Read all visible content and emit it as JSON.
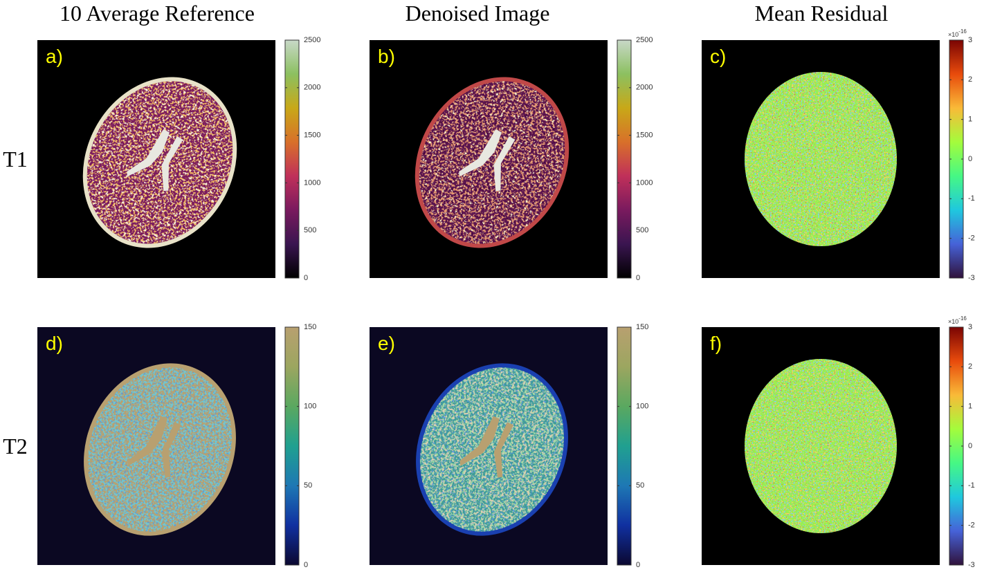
{
  "column_titles": [
    "10 Average Reference",
    "Denoised Image",
    "Mean Residual"
  ],
  "row_labels": [
    "T1",
    "T2"
  ],
  "panels": [
    {
      "label": "a)",
      "colorbar": {
        "lim": [
          0,
          2500
        ],
        "ticks": [
          0,
          500,
          1000,
          1500,
          2000,
          2500
        ],
        "colors": [
          "#000000",
          "#3a1550",
          "#7a1a5e",
          "#c0305a",
          "#d8702a",
          "#c8a818",
          "#8cc060",
          "#c8d8c8"
        ]
      }
    },
    {
      "label": "b)",
      "colorbar": {
        "lim": [
          0,
          2500
        ],
        "ticks": [
          0,
          500,
          1000,
          1500,
          2000,
          2500
        ],
        "colors": [
          "#000000",
          "#3a1550",
          "#7a1a5e",
          "#c0305a",
          "#d8702a",
          "#c8a818",
          "#8cc060",
          "#c8d8c8"
        ]
      }
    },
    {
      "label": "c)",
      "colorbar": {
        "lim": [
          -3,
          3
        ],
        "ticks": [
          -3,
          -2,
          -1,
          0,
          1,
          2,
          3
        ],
        "multiplier": {
          "base": "×10",
          "exponent": "-16"
        },
        "colors": [
          "#30123b",
          "#4662d8",
          "#1fc8de",
          "#46f884",
          "#a4fc3c",
          "#f9ba38",
          "#e84b0c",
          "#7a0403"
        ]
      }
    },
    {
      "label": "d)",
      "colorbar": {
        "lim": [
          0,
          150
        ],
        "ticks": [
          0,
          50,
          100,
          150
        ],
        "colors": [
          "#0b0830",
          "#1030a0",
          "#1e78b4",
          "#20a090",
          "#5aa860",
          "#9ca660",
          "#b8a070"
        ]
      }
    },
    {
      "label": "e)",
      "colorbar": {
        "lim": [
          0,
          150
        ],
        "ticks": [
          0,
          50,
          100,
          150
        ],
        "colors": [
          "#0b0830",
          "#1030a0",
          "#1e78b4",
          "#20a090",
          "#5aa860",
          "#9ca660",
          "#b8a070"
        ]
      }
    },
    {
      "label": "f)",
      "colorbar": {
        "lim": [
          -3,
          3
        ],
        "ticks": [
          -3,
          -2,
          -1,
          0,
          1,
          2,
          3
        ],
        "multiplier": {
          "base": "×10",
          "exponent": "-16"
        },
        "colors": [
          "#30123b",
          "#4662d8",
          "#1fc8de",
          "#46f884",
          "#a4fc3c",
          "#f9ba38",
          "#e84b0c",
          "#7a0403"
        ]
      }
    }
  ]
}
